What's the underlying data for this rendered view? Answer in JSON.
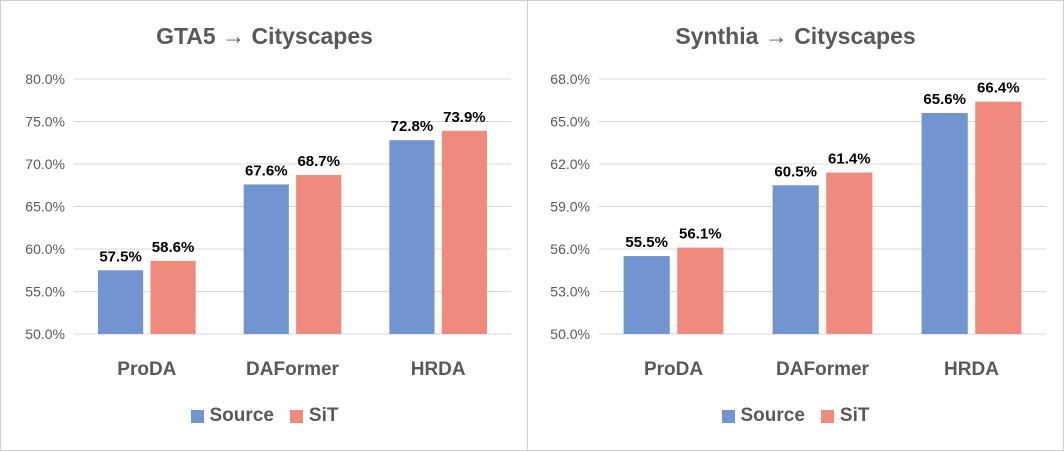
{
  "chart_data": [
    {
      "type": "bar",
      "title": "GTA5 → Cityscapes",
      "categories": [
        "ProDA",
        "DAFormer",
        "HRDA"
      ],
      "series": [
        {
          "name": "Source",
          "values": [
            57.5,
            67.6,
            72.8
          ],
          "color": "#7295d2",
          "labels": [
            "57.5%",
            "67.6%",
            "72.8%"
          ]
        },
        {
          "name": "SiT",
          "values": [
            58.6,
            68.7,
            73.9
          ],
          "color": "#f08a7c",
          "labels": [
            "58.6%",
            "68.7%",
            "73.9%"
          ]
        }
      ],
      "ylim": [
        50,
        80
      ],
      "yticks": [
        50,
        55,
        60,
        65,
        70,
        75,
        80
      ],
      "ytick_labels": [
        "50.0%",
        "55.0%",
        "60.0%",
        "65.0%",
        "70.0%",
        "75.0%",
        "80.0%"
      ],
      "legend": "bottom",
      "grid": true
    },
    {
      "type": "bar",
      "title": "Synthia → Cityscapes",
      "categories": [
        "ProDA",
        "DAFormer",
        "HRDA"
      ],
      "series": [
        {
          "name": "Source",
          "values": [
            55.5,
            60.5,
            65.6
          ],
          "color": "#7295d2",
          "labels": [
            "55.5%",
            "60.5%",
            "65.6%"
          ]
        },
        {
          "name": "SiT",
          "values": [
            56.1,
            61.4,
            66.4
          ],
          "color": "#f08a7c",
          "labels": [
            "56.1%",
            "61.4%",
            "66.4%"
          ]
        }
      ],
      "ylim": [
        50,
        68
      ],
      "yticks": [
        50,
        53,
        56,
        59,
        62,
        65,
        68
      ],
      "ytick_labels": [
        "50.0%",
        "53.0%",
        "56.0%",
        "59.0%",
        "62.0%",
        "65.0%",
        "68.0%"
      ],
      "legend": "bottom",
      "grid": true
    }
  ]
}
